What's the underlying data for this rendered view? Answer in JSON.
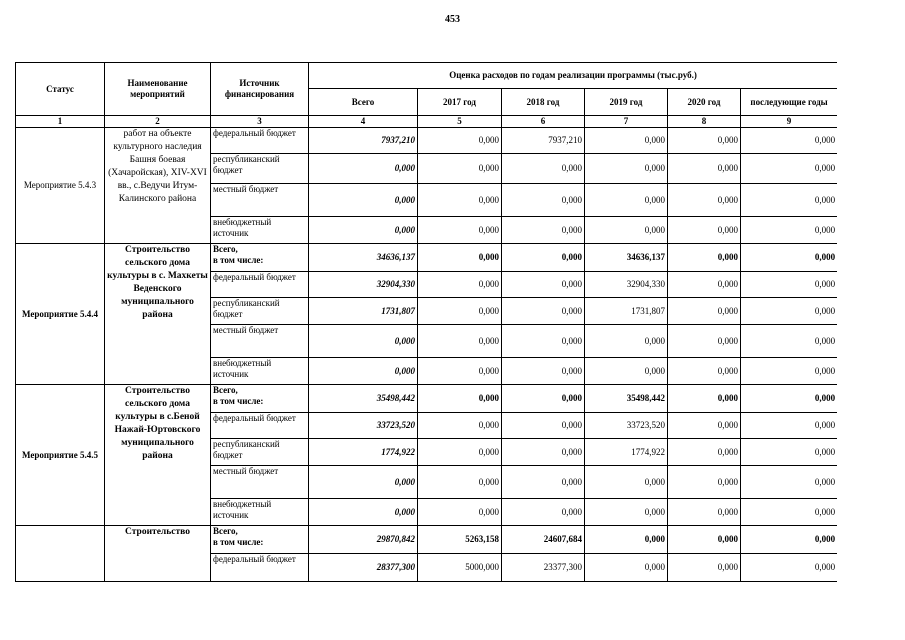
{
  "page_number": "453",
  "table": {
    "header": {
      "status": "Статус",
      "name": "Наименование мероприятий",
      "source": "Источник финансирования",
      "estimate": "Оценка расходов по годам реализации  программы (тыс.руб.)",
      "years": [
        "Всего",
        "2017 год",
        "2018 год",
        "2019 год",
        "2020 год",
        "последующие годы"
      ]
    },
    "column_numbers": [
      "1",
      "2",
      "3",
      "4",
      "5",
      "6",
      "7",
      "8",
      "9"
    ],
    "groups": [
      {
        "status": "Мероприятие 5.4.3",
        "name": "работ на объекте культурного наследия Башня боевая (Хачаройская), XIV-XVI вв., с.Ведучи Итум-Калинского района",
        "rows": [
          {
            "source": "федеральный бюджет",
            "values": [
              "7937,210",
              "0,000",
              "7937,210",
              "0,000",
              "0,000",
              "0,000"
            ]
          },
          {
            "source": "республиканский бюджет",
            "values": [
              "0,000",
              "0,000",
              "0,000",
              "0,000",
              "0,000",
              "0,000"
            ]
          },
          {
            "source": "местный бюджет",
            "values": [
              "0,000",
              "0,000",
              "0,000",
              "0,000",
              "0,000",
              "0,000"
            ]
          },
          {
            "source": "внебюджетный источник",
            "values": [
              "0,000",
              "0,000",
              "0,000",
              "0,000",
              "0,000",
              "0,000"
            ]
          }
        ]
      },
      {
        "status": "Мероприятие 5.4.4",
        "name": "Строительство сельского дома культуры в с. Махкеты Веденского муниципального района",
        "rows": [
          {
            "source": "Всего,\nв том числе:",
            "values": [
              "34636,137",
              "0,000",
              "0,000",
              "34636,137",
              "0,000",
              "0,000"
            ]
          },
          {
            "source": "федеральный бюджет",
            "values": [
              "32904,330",
              "0,000",
              "0,000",
              "32904,330",
              "0,000",
              "0,000"
            ]
          },
          {
            "source": "республиканский бюджет",
            "values": [
              "1731,807",
              "0,000",
              "0,000",
              "1731,807",
              "0,000",
              "0,000"
            ]
          },
          {
            "source": "местный бюджет",
            "values": [
              "0,000",
              "0,000",
              "0,000",
              "0,000",
              "0,000",
              "0,000"
            ]
          },
          {
            "source": "внебюджетный источник",
            "values": [
              "0,000",
              "0,000",
              "0,000",
              "0,000",
              "0,000",
              "0,000"
            ]
          }
        ]
      },
      {
        "status": "Мероприятие 5.4.5",
        "name": "Строительство сельского дома культуры в с.Беной Нажай-Юртовского муниципального района",
        "rows": [
          {
            "source": "Всего,\nв том числе:",
            "values": [
              "35498,442",
              "0,000",
              "0,000",
              "35498,442",
              "0,000",
              "0,000"
            ]
          },
          {
            "source": "федеральный бюджет",
            "values": [
              "33723,520",
              "0,000",
              "0,000",
              "33723,520",
              "0,000",
              "0,000"
            ]
          },
          {
            "source": "республиканский бюджет",
            "values": [
              "1774,922",
              "0,000",
              "0,000",
              "1774,922",
              "0,000",
              "0,000"
            ]
          },
          {
            "source": "местный бюджет",
            "values": [
              "0,000",
              "0,000",
              "0,000",
              "0,000",
              "0,000",
              "0,000"
            ]
          },
          {
            "source": "внебюджетный источник",
            "values": [
              "0,000",
              "0,000",
              "0,000",
              "0,000",
              "0,000",
              "0,000"
            ]
          }
        ]
      },
      {
        "name": "Строительство",
        "rows": [
          {
            "source": "Всего,\nв том числе:",
            "values": [
              "29870,842",
              "5263,158",
              "24607,684",
              "0,000",
              "0,000",
              "0,000"
            ]
          },
          {
            "source": "федеральный бюджет",
            "values": [
              "28377,300",
              "5000,000",
              "23377,300",
              "0,000",
              "0,000",
              "0,000"
            ]
          }
        ]
      }
    ]
  }
}
